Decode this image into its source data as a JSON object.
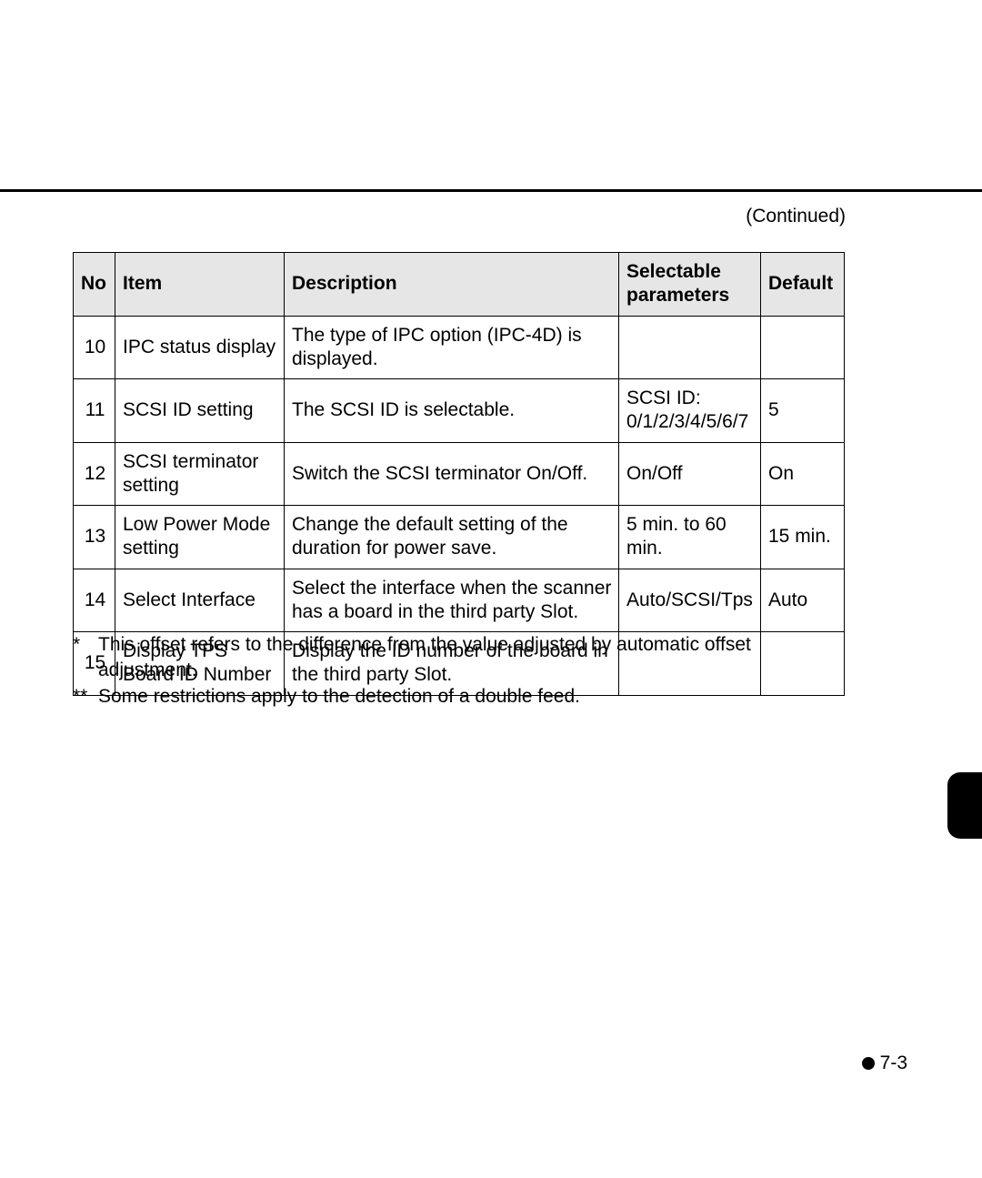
{
  "continued_label": "(Continued)",
  "table": {
    "columns": {
      "no": "No",
      "item": "Item",
      "desc": "Description",
      "sel_line1": "Selectable",
      "sel_line2": "parameters",
      "def": "Default"
    },
    "rows": [
      {
        "no": "10",
        "item": "IPC status display",
        "desc": "The type of IPC option (IPC-4D) is displayed.",
        "sel": "",
        "def": ""
      },
      {
        "no": "11",
        "item": "SCSI ID setting",
        "desc": "The SCSI ID is selectable.",
        "sel": "SCSI ID: 0/1/2/3/4/5/6/7",
        "def": "5"
      },
      {
        "no": "12",
        "item": "SCSI terminator setting",
        "desc": "Switch the SCSI terminator On/Off.",
        "sel": "On/Off",
        "def": "On"
      },
      {
        "no": "13",
        "item": "Low Power Mode setting",
        "desc": "Change the default setting of the duration for power save.",
        "sel": "5 min. to 60 min.",
        "def": "15 min."
      },
      {
        "no": "14",
        "item": "Select Interface",
        "desc": "Select the interface when the scanner has a board in the third party Slot.",
        "sel": "Auto/SCSI/Tps",
        "def": "Auto"
      },
      {
        "no": "15",
        "item": "Display TPS Board ID Number",
        "desc": "Display the ID number of the board in the third party Slot.",
        "sel": "",
        "def": ""
      }
    ]
  },
  "notes": [
    {
      "mark": "*",
      "text": "This offset refers to the difference from the value adjusted by automatic offset adjustment."
    },
    {
      "mark": "**",
      "text": "Some restrictions apply to the detection of a double feed."
    }
  ],
  "page_number": "7-3"
}
